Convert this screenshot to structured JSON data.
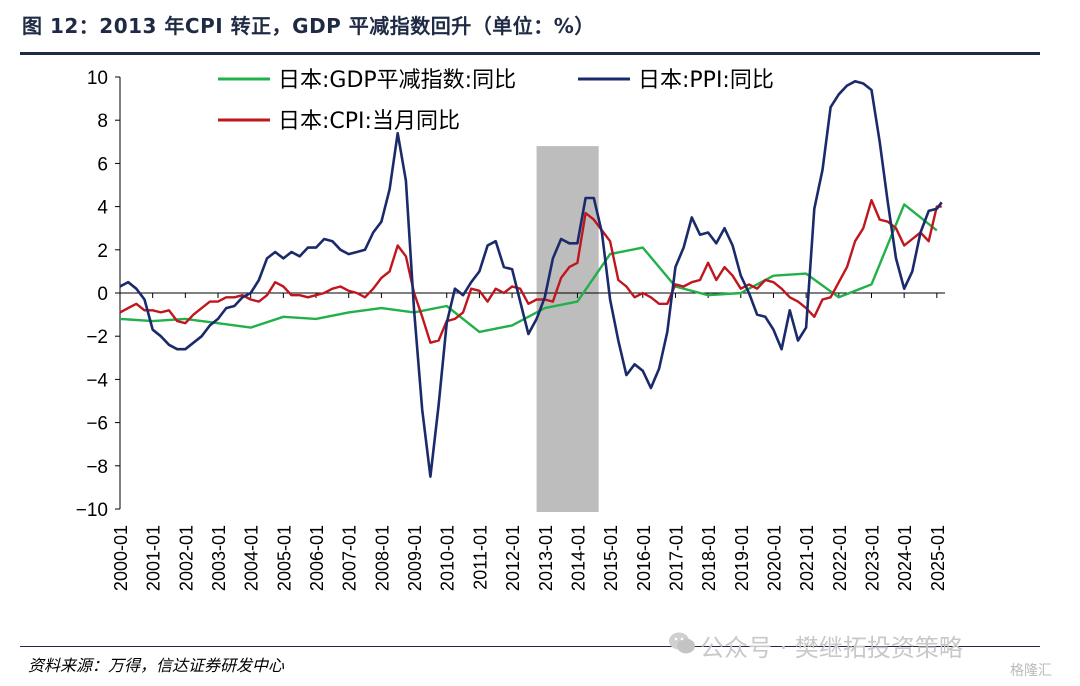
{
  "figure": {
    "title": "图 12：2013 年CPI 转正，GDP 平减指数回升（单位：%）",
    "source": "资料来源：万得，信达证券研发中心",
    "watermark": "公众号 · 樊继拓投资策略",
    "logo": "格隆汇"
  },
  "colors": {
    "gdp": "#22b04b",
    "ppi": "#1b2a6b",
    "cpi": "#c0161e",
    "shade": "#bdbdbd",
    "title": "#1f2a44"
  },
  "chart_data": {
    "type": "line",
    "ylim": [
      -10,
      10
    ],
    "yticks": [
      10,
      8,
      6,
      4,
      2,
      0,
      -2,
      -4,
      -6,
      -8,
      -10
    ],
    "xlim": [
      2000.0,
      2025.25
    ],
    "xtick_labels": [
      "2000-01",
      "2001-01",
      "2002-01",
      "2003-01",
      "2004-01",
      "2005-01",
      "2006-01",
      "2007-01",
      "2008-01",
      "2009-01",
      "2010-01",
      "2011-01",
      "2012-01",
      "2013-01",
      "2014-01",
      "2015-01",
      "2016-01",
      "2017-01",
      "2018-01",
      "2019-01",
      "2020-01",
      "2021-01",
      "2022-01",
      "2023-01",
      "2024-01",
      "2025-01"
    ],
    "shaded_region": {
      "x": [
        2012.75,
        2014.65
      ]
    },
    "legend": [
      "日本:GDP平减指数:同比",
      "日本:PPI:同比",
      "日本:CPI:当月同比"
    ],
    "series": [
      {
        "name": "日本:GDP平减指数:同比",
        "key": "gdp",
        "x": [
          2000.0,
          2001.0,
          2002.0,
          2003.0,
          2004.0,
          2005.0,
          2006.0,
          2007.0,
          2008.0,
          2009.0,
          2010.0,
          2011.0,
          2012.0,
          2013.0,
          2014.0,
          2015.0,
          2016.0,
          2017.0,
          2018.0,
          2019.0,
          2020.0,
          2021.0,
          2022.0,
          2023.0,
          2024.0,
          2025.0
        ],
        "y": [
          -1.2,
          -1.3,
          -1.2,
          -1.4,
          -1.6,
          -1.1,
          -1.2,
          -0.9,
          -0.7,
          -0.9,
          -0.6,
          -1.8,
          -1.5,
          -0.7,
          -0.4,
          1.8,
          2.1,
          0.3,
          -0.1,
          0.0,
          0.8,
          0.9,
          -0.2,
          0.4,
          4.1,
          2.9
        ]
      },
      {
        "name": "日本:PPI:同比",
        "key": "ppi",
        "x": [
          2000.0,
          2000.25,
          2000.5,
          2000.75,
          2001.0,
          2001.25,
          2001.5,
          2001.75,
          2002.0,
          2002.25,
          2002.5,
          2002.75,
          2003.0,
          2003.25,
          2003.5,
          2003.75,
          2004.0,
          2004.25,
          2004.5,
          2004.75,
          2005.0,
          2005.25,
          2005.5,
          2005.75,
          2006.0,
          2006.25,
          2006.5,
          2006.75,
          2007.0,
          2007.25,
          2007.5,
          2007.75,
          2008.0,
          2008.25,
          2008.5,
          2008.75,
          2009.0,
          2009.25,
          2009.5,
          2009.75,
          2010.0,
          2010.25,
          2010.5,
          2010.75,
          2011.0,
          2011.25,
          2011.5,
          2011.75,
          2012.0,
          2012.25,
          2012.5,
          2012.75,
          2013.0,
          2013.25,
          2013.5,
          2013.75,
          2014.0,
          2014.25,
          2014.5,
          2014.75,
          2015.0,
          2015.25,
          2015.5,
          2015.75,
          2016.0,
          2016.25,
          2016.5,
          2016.75,
          2017.0,
          2017.25,
          2017.5,
          2017.75,
          2018.0,
          2018.25,
          2018.5,
          2018.75,
          2019.0,
          2019.25,
          2019.5,
          2019.75,
          2020.0,
          2020.25,
          2020.5,
          2020.75,
          2021.0,
          2021.25,
          2021.5,
          2021.75,
          2022.0,
          2022.25,
          2022.5,
          2022.75,
          2023.0,
          2023.25,
          2023.5,
          2023.75,
          2024.0,
          2024.25,
          2024.5,
          2024.75,
          2025.0,
          2025.15
        ],
        "y": [
          0.3,
          0.5,
          0.2,
          -0.3,
          -1.7,
          -2.0,
          -2.4,
          -2.6,
          -2.6,
          -2.3,
          -2.0,
          -1.5,
          -1.2,
          -0.7,
          -0.6,
          -0.2,
          0.0,
          0.6,
          1.6,
          1.9,
          1.6,
          1.9,
          1.7,
          2.1,
          2.1,
          2.5,
          2.4,
          2.0,
          1.8,
          1.9,
          2.0,
          2.8,
          3.3,
          4.8,
          7.4,
          5.2,
          -0.8,
          -5.4,
          -8.5,
          -5.2,
          -1.4,
          0.2,
          -0.1,
          0.5,
          1.0,
          2.2,
          2.4,
          1.2,
          1.1,
          -0.4,
          -1.9,
          -1.2,
          -0.2,
          1.6,
          2.5,
          2.3,
          2.3,
          4.4,
          4.4,
          2.8,
          -0.3,
          -2.2,
          -3.8,
          -3.3,
          -3.6,
          -4.4,
          -3.5,
          -1.8,
          1.2,
          2.1,
          3.5,
          2.7,
          2.8,
          2.3,
          3.0,
          2.2,
          0.8,
          0.0,
          -1.0,
          -1.1,
          -1.7,
          -2.6,
          -0.8,
          -2.2,
          -1.6,
          3.9,
          5.7,
          8.6,
          9.2,
          9.6,
          9.8,
          9.7,
          9.4,
          7.0,
          4.2,
          1.6,
          0.2,
          1.0,
          2.8,
          3.8,
          3.9,
          4.2
        ]
      },
      {
        "name": "日本:CPI:当月同比",
        "key": "cpi",
        "x": [
          2000.0,
          2000.25,
          2000.5,
          2000.75,
          2001.0,
          2001.25,
          2001.5,
          2001.75,
          2002.0,
          2002.25,
          2002.5,
          2002.75,
          2003.0,
          2003.25,
          2003.5,
          2003.75,
          2004.0,
          2004.25,
          2004.5,
          2004.75,
          2005.0,
          2005.25,
          2005.5,
          2005.75,
          2006.0,
          2006.25,
          2006.5,
          2006.75,
          2007.0,
          2007.25,
          2007.5,
          2007.75,
          2008.0,
          2008.25,
          2008.5,
          2008.75,
          2009.0,
          2009.25,
          2009.5,
          2009.75,
          2010.0,
          2010.25,
          2010.5,
          2010.75,
          2011.0,
          2011.25,
          2011.5,
          2011.75,
          2012.0,
          2012.25,
          2012.5,
          2012.75,
          2013.0,
          2013.25,
          2013.5,
          2013.75,
          2014.0,
          2014.25,
          2014.5,
          2014.75,
          2015.0,
          2015.25,
          2015.5,
          2015.75,
          2016.0,
          2016.25,
          2016.5,
          2016.75,
          2017.0,
          2017.25,
          2017.5,
          2017.75,
          2018.0,
          2018.25,
          2018.5,
          2018.75,
          2019.0,
          2019.25,
          2019.5,
          2019.75,
          2020.0,
          2020.25,
          2020.5,
          2020.75,
          2021.0,
          2021.25,
          2021.5,
          2021.75,
          2022.0,
          2022.25,
          2022.5,
          2022.75,
          2023.0,
          2023.25,
          2023.5,
          2023.75,
          2024.0,
          2024.25,
          2024.5,
          2024.75,
          2025.0,
          2025.15
        ],
        "y": [
          -0.9,
          -0.7,
          -0.5,
          -0.8,
          -0.8,
          -0.9,
          -0.8,
          -1.3,
          -1.4,
          -1.0,
          -0.7,
          -0.4,
          -0.4,
          -0.2,
          -0.2,
          -0.1,
          -0.3,
          -0.4,
          -0.1,
          0.5,
          0.3,
          -0.1,
          -0.1,
          -0.2,
          -0.1,
          0.0,
          0.2,
          0.3,
          0.1,
          0.0,
          -0.2,
          0.2,
          0.7,
          1.0,
          2.2,
          1.7,
          0.0,
          -1.1,
          -2.3,
          -2.2,
          -1.3,
          -1.2,
          -0.9,
          0.2,
          0.1,
          -0.4,
          0.2,
          0.0,
          0.3,
          0.2,
          -0.5,
          -0.3,
          -0.3,
          -0.4,
          0.7,
          1.2,
          1.4,
          3.7,
          3.4,
          2.9,
          2.4,
          0.6,
          0.3,
          -0.2,
          0.0,
          -0.2,
          -0.5,
          -0.5,
          0.4,
          0.3,
          0.5,
          0.6,
          1.4,
          0.6,
          1.2,
          0.8,
          0.2,
          0.4,
          0.2,
          0.6,
          0.5,
          0.2,
          -0.2,
          -0.4,
          -0.7,
          -1.1,
          -0.3,
          -0.2,
          0.5,
          1.2,
          2.4,
          3.0,
          4.3,
          3.4,
          3.3,
          3.0,
          2.2,
          2.5,
          2.8,
          2.4,
          4.0,
          4.0
        ]
      }
    ]
  }
}
